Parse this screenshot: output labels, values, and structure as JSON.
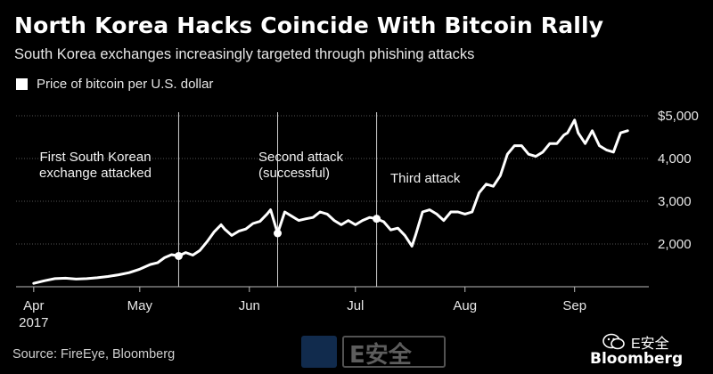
{
  "header": {
    "title": "North Korea Hacks Coincide With Bitcoin Rally",
    "subtitle": "South Korea exchanges increasingly targeted through phishing attacks",
    "legend_label": "Price of bitcoin per U.S. dollar"
  },
  "footer": {
    "source": "Source: FireEye, Bloomberg",
    "watermark_text": "E安全",
    "wechat_label": "E安全",
    "brand": "Bloomberg"
  },
  "chart_data": {
    "type": "line",
    "title": "North Korea Hacks Coincide With Bitcoin Rally",
    "subtitle": "South Korea exchanges increasingly targeted through phishing attacks",
    "legend": [
      "Price of bitcoin per U.S. dollar"
    ],
    "x_ticks": [
      {
        "date": "2017-04-01",
        "label": "Apr",
        "sublabel": "2017"
      },
      {
        "date": "2017-05-01",
        "label": "May",
        "sublabel": ""
      },
      {
        "date": "2017-06-01",
        "label": "Jun",
        "sublabel": ""
      },
      {
        "date": "2017-07-01",
        "label": "Jul",
        "sublabel": ""
      },
      {
        "date": "2017-08-01",
        "label": "Aug",
        "sublabel": ""
      },
      {
        "date": "2017-09-01",
        "label": "Sep",
        "sublabel": ""
      }
    ],
    "y_ticks": [
      {
        "value": 2000,
        "label": "2,000"
      },
      {
        "value": 3000,
        "label": "3,000"
      },
      {
        "value": 4000,
        "label": "4,000"
      },
      {
        "value": 5000,
        "label": "$5,000"
      }
    ],
    "xlim": [
      "2017-03-27",
      "2017-09-22"
    ],
    "ylim": [
      1000,
      5000
    ],
    "grid": "horizontal",
    "annotations": [
      {
        "date": "2017-05-12",
        "value": 1720,
        "lines": [
          "First South Korean",
          "exchange attacked"
        ]
      },
      {
        "date": "2017-06-09",
        "value": 2250,
        "lines": [
          "Second attack",
          "(successful)"
        ]
      },
      {
        "date": "2017-07-07",
        "value": 2590,
        "lines": [
          "Third attack"
        ]
      }
    ],
    "series": [
      {
        "name": "Price of bitcoin per U.S. dollar",
        "color": "#ffffff",
        "points": [
          [
            "2017-04-01",
            1080
          ],
          [
            "2017-04-04",
            1140
          ],
          [
            "2017-04-07",
            1190
          ],
          [
            "2017-04-10",
            1200
          ],
          [
            "2017-04-13",
            1180
          ],
          [
            "2017-04-16",
            1190
          ],
          [
            "2017-04-19",
            1210
          ],
          [
            "2017-04-22",
            1240
          ],
          [
            "2017-04-25",
            1280
          ],
          [
            "2017-04-28",
            1330
          ],
          [
            "2017-05-01",
            1410
          ],
          [
            "2017-05-04",
            1520
          ],
          [
            "2017-05-06",
            1560
          ],
          [
            "2017-05-08",
            1680
          ],
          [
            "2017-05-10",
            1750
          ],
          [
            "2017-05-12",
            1720
          ],
          [
            "2017-05-14",
            1800
          ],
          [
            "2017-05-16",
            1740
          ],
          [
            "2017-05-18",
            1850
          ],
          [
            "2017-05-20",
            2050
          ],
          [
            "2017-05-22",
            2280
          ],
          [
            "2017-05-24",
            2450
          ],
          [
            "2017-05-25",
            2350
          ],
          [
            "2017-05-27",
            2200
          ],
          [
            "2017-05-29",
            2300
          ],
          [
            "2017-05-31",
            2350
          ],
          [
            "2017-06-02",
            2480
          ],
          [
            "2017-06-04",
            2530
          ],
          [
            "2017-06-06",
            2700
          ],
          [
            "2017-06-07",
            2800
          ],
          [
            "2017-06-09",
            2250
          ],
          [
            "2017-06-11",
            2750
          ],
          [
            "2017-06-13",
            2650
          ],
          [
            "2017-06-15",
            2550
          ],
          [
            "2017-06-17",
            2590
          ],
          [
            "2017-06-19",
            2620
          ],
          [
            "2017-06-21",
            2750
          ],
          [
            "2017-06-23",
            2700
          ],
          [
            "2017-06-25",
            2550
          ],
          [
            "2017-06-27",
            2450
          ],
          [
            "2017-06-29",
            2550
          ],
          [
            "2017-07-01",
            2450
          ],
          [
            "2017-07-03",
            2550
          ],
          [
            "2017-07-05",
            2620
          ],
          [
            "2017-07-07",
            2590
          ],
          [
            "2017-07-09",
            2520
          ],
          [
            "2017-07-11",
            2330
          ],
          [
            "2017-07-13",
            2370
          ],
          [
            "2017-07-15",
            2200
          ],
          [
            "2017-07-17",
            1950
          ],
          [
            "2017-07-18",
            2200
          ],
          [
            "2017-07-20",
            2750
          ],
          [
            "2017-07-22",
            2800
          ],
          [
            "2017-07-24",
            2700
          ],
          [
            "2017-07-26",
            2550
          ],
          [
            "2017-07-28",
            2750
          ],
          [
            "2017-07-30",
            2750
          ],
          [
            "2017-08-01",
            2700
          ],
          [
            "2017-08-03",
            2750
          ],
          [
            "2017-08-05",
            3200
          ],
          [
            "2017-08-07",
            3400
          ],
          [
            "2017-08-09",
            3350
          ],
          [
            "2017-08-11",
            3600
          ],
          [
            "2017-08-13",
            4100
          ],
          [
            "2017-08-15",
            4300
          ],
          [
            "2017-08-17",
            4300
          ],
          [
            "2017-08-19",
            4100
          ],
          [
            "2017-08-21",
            4050
          ],
          [
            "2017-08-23",
            4150
          ],
          [
            "2017-08-25",
            4350
          ],
          [
            "2017-08-27",
            4350
          ],
          [
            "2017-08-29",
            4550
          ],
          [
            "2017-08-30",
            4600
          ],
          [
            "2017-09-01",
            4900
          ],
          [
            "2017-09-02",
            4600
          ],
          [
            "2017-09-04",
            4350
          ],
          [
            "2017-09-06",
            4650
          ],
          [
            "2017-09-08",
            4300
          ],
          [
            "2017-09-10",
            4200
          ],
          [
            "2017-09-12",
            4150
          ],
          [
            "2017-09-14",
            4600
          ],
          [
            "2017-09-16",
            4650
          ]
        ]
      }
    ],
    "source": "Source: FireEye, Bloomberg"
  }
}
